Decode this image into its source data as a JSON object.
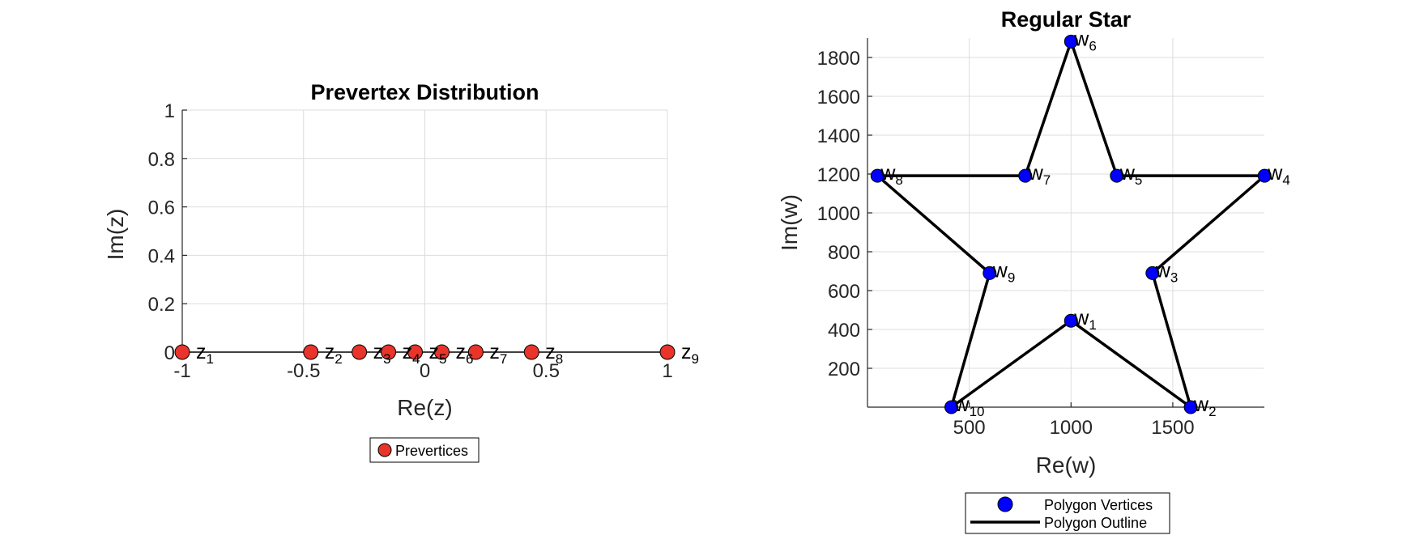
{
  "chart_data": [
    {
      "type": "scatter",
      "title": "Prevertex Distribution",
      "xlabel": "Re(z)",
      "ylabel": "Im(z)",
      "xlim": [
        -1,
        1
      ],
      "ylim": [
        0,
        1
      ],
      "xticks": [
        -1,
        -0.5,
        0,
        0.5,
        1
      ],
      "xtick_labels": [
        "-1",
        "-0.5",
        "0",
        "0.5",
        "1"
      ],
      "yticks": [
        0,
        0.2,
        0.4,
        0.6,
        0.8,
        1
      ],
      "ytick_labels": [
        "0",
        "0.2",
        "0.4",
        "0.6",
        "0.8",
        "1"
      ],
      "grid": true,
      "legend_position": "bottom",
      "series": [
        {
          "name": "Prevertices",
          "color": "#e8342a",
          "x": [
            -1,
            -0.47,
            -0.27,
            -0.15,
            -0.04,
            0.07,
            0.21,
            0.44,
            1
          ],
          "y": [
            0,
            0,
            0,
            0,
            0,
            0,
            0,
            0,
            0
          ],
          "labels": [
            "z",
            "z",
            "z",
            "z",
            "z",
            "z",
            "z",
            "z",
            "z"
          ],
          "subscripts": [
            "1",
            "2",
            "3",
            "4",
            "5",
            "6",
            "7",
            "8",
            "9"
          ]
        }
      ]
    },
    {
      "type": "line",
      "title": "Regular Star",
      "xlabel": "Re(w)",
      "ylabel": "Im(w)",
      "xlim": [
        0,
        1950
      ],
      "ylim": [
        0,
        1900
      ],
      "xticks": [
        500,
        1000,
        1500
      ],
      "xtick_labels": [
        "500",
        "1000",
        "1500"
      ],
      "yticks": [
        200,
        400,
        600,
        800,
        1000,
        1200,
        1400,
        1600,
        1800
      ],
      "ytick_labels": [
        "200",
        "400",
        "600",
        "800",
        "1000",
        "1200",
        "1400",
        "1600",
        "1800"
      ],
      "grid": true,
      "legend_position": "bottom",
      "series": [
        {
          "name": "Polygon Vertices",
          "color": "#0000ff",
          "x": [
            1000,
            1588,
            1400,
            1951,
            1225,
            1000,
            775,
            49,
            600,
            412
          ],
          "y": [
            445,
            0,
            690,
            1191,
            1191,
            1882,
            1191,
            1191,
            690,
            0
          ],
          "labels": [
            "w",
            "w",
            "w",
            "w",
            "w",
            "w",
            "w",
            "w",
            "w",
            "w"
          ],
          "subscripts": [
            "1",
            "2",
            "3",
            "4",
            "5",
            "6",
            "7",
            "8",
            "9",
            "10"
          ]
        },
        {
          "name": "Polygon Outline",
          "color": "#000000",
          "closed": true
        }
      ]
    }
  ]
}
